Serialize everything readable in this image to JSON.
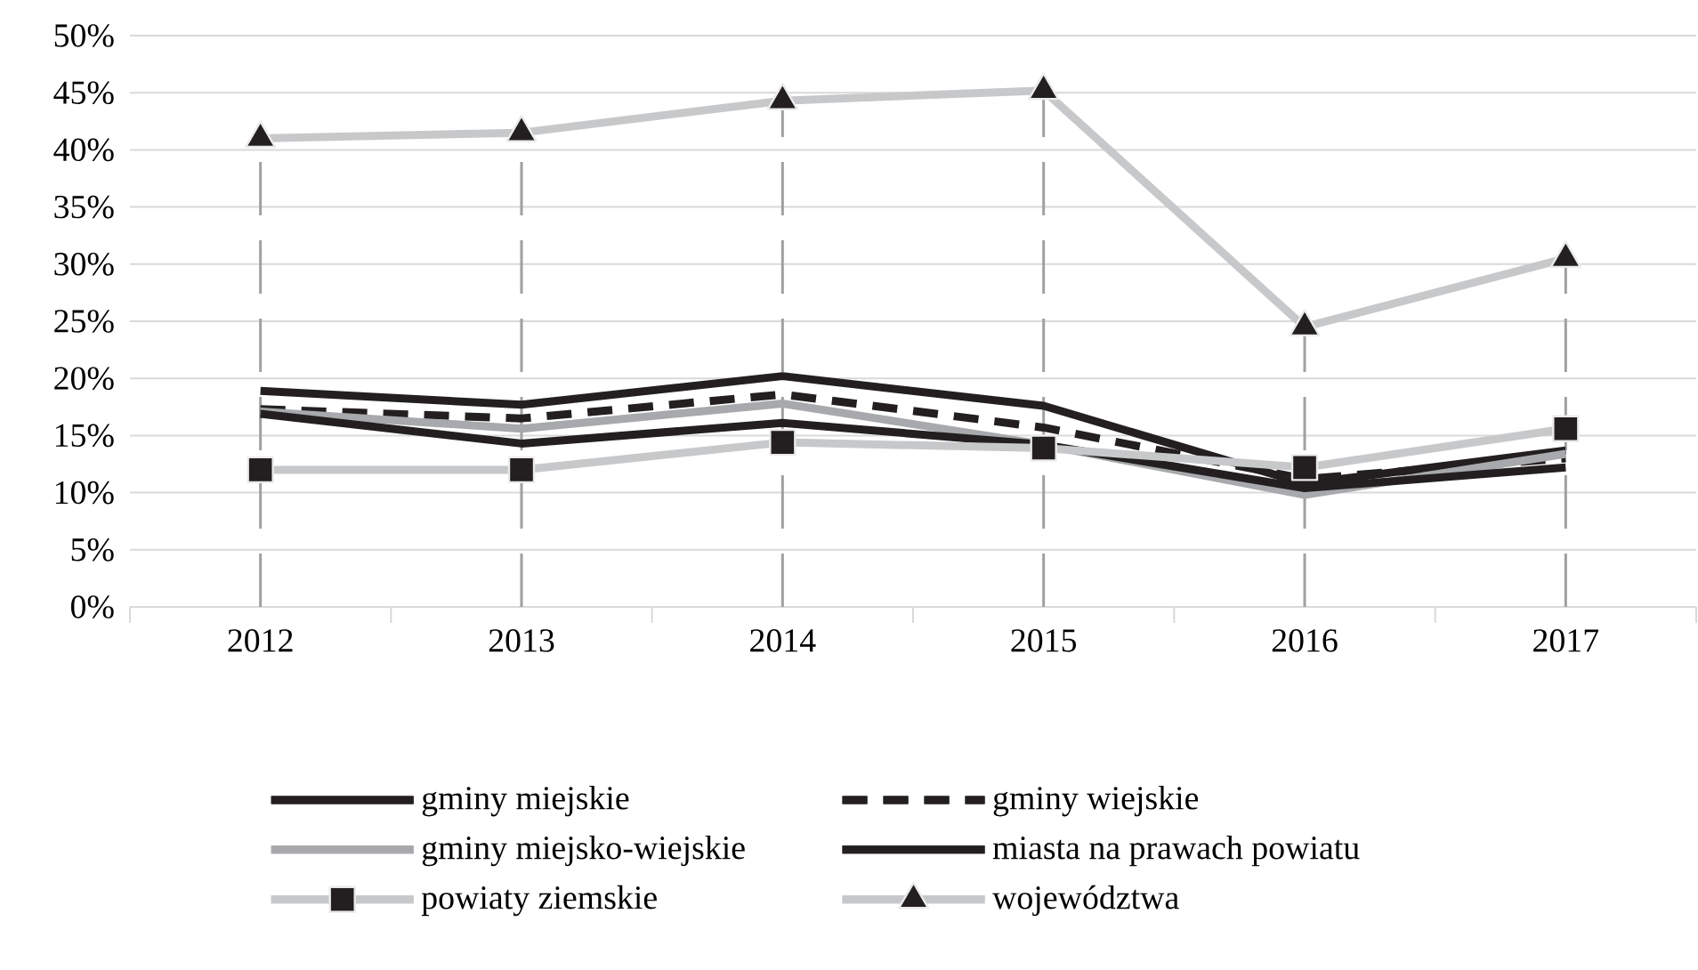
{
  "chart_data": {
    "type": "line",
    "categories": [
      "2012",
      "2013",
      "2014",
      "2015",
      "2016",
      "2017"
    ],
    "series": [
      {
        "name": "gminy miejskie",
        "color": "#231f20",
        "line_style": "solid",
        "marker": "none",
        "values": [
          18.9,
          17.7,
          20.2,
          17.6,
          10.8,
          13.7
        ]
      },
      {
        "name": "gminy wiejskie",
        "color": "#231f20",
        "line_style": "dashed",
        "marker": "none",
        "values": [
          17.3,
          16.5,
          18.6,
          15.7,
          11.2,
          13.0
        ]
      },
      {
        "name": "gminy miejsko-wiejskie",
        "color": "#a7a9ac",
        "line_style": "solid",
        "marker": "none",
        "values": [
          17.1,
          15.6,
          17.8,
          14.2,
          9.8,
          13.4
        ]
      },
      {
        "name": "miasta na prawach powiatu",
        "color": "#231f20",
        "line_style": "solid",
        "marker": "none",
        "values": [
          16.9,
          14.3,
          16.1,
          14.2,
          10.4,
          12.2
        ]
      },
      {
        "name": "powiaty ziemskie",
        "color": "#c7c8ca",
        "line_style": "solid",
        "marker": "square",
        "values": [
          12.0,
          12.0,
          14.4,
          13.9,
          12.2,
          15.6
        ]
      },
      {
        "name": "województwa",
        "color": "#c7c8ca",
        "line_style": "solid",
        "marker": "triangle",
        "values": [
          41.0,
          41.5,
          44.3,
          45.2,
          24.5,
          30.5
        ]
      }
    ],
    "ylim": [
      0,
      50
    ],
    "yticks": [
      {
        "value": 0,
        "label": "0%"
      },
      {
        "value": 5,
        "label": "5%"
      },
      {
        "value": 10,
        "label": "10%"
      },
      {
        "value": 15,
        "label": "15%"
      },
      {
        "value": 20,
        "label": "20%"
      },
      {
        "value": 25,
        "label": "25%"
      },
      {
        "value": 30,
        "label": "30%"
      },
      {
        "value": 35,
        "label": "35%"
      },
      {
        "value": 40,
        "label": "40%"
      },
      {
        "value": 45,
        "label": "45%"
      },
      {
        "value": 50,
        "label": "50%"
      }
    ],
    "grid": "y",
    "legend": "bottom",
    "ref_lines": [
      {
        "axis": "x",
        "value": "2012",
        "color": "#a0a0a0",
        "line_style": "dashed"
      },
      {
        "axis": "x",
        "value": "2013",
        "color": "#a0a0a0",
        "line_style": "dashed"
      },
      {
        "axis": "x",
        "value": "2014",
        "color": "#a0a0a0",
        "line_style": "dashed"
      },
      {
        "axis": "x",
        "value": "2015",
        "color": "#a0a0a0",
        "line_style": "dashed"
      },
      {
        "axis": "x",
        "value": "2016",
        "color": "#a0a0a0",
        "line_style": "dashed"
      },
      {
        "axis": "x",
        "value": "2017",
        "color": "#a0a0a0",
        "line_style": "dashed"
      }
    ]
  }
}
